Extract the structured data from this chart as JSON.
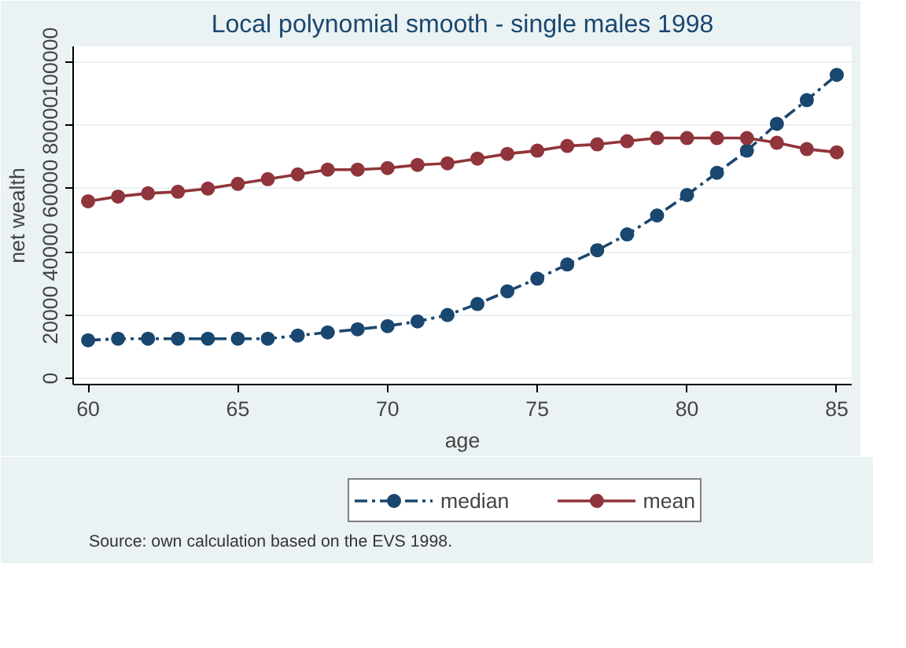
{
  "chart_data": {
    "type": "line",
    "title": "Local polynomial smooth - single males 1998",
    "xlabel": "age",
    "ylabel": "net wealth",
    "x": [
      60,
      61,
      62,
      63,
      64,
      65,
      66,
      67,
      68,
      69,
      70,
      71,
      72,
      73,
      74,
      75,
      76,
      77,
      78,
      79,
      80,
      81,
      82,
      83,
      84,
      85
    ],
    "series": [
      {
        "name": "median",
        "color": "#1a476f",
        "line_style": "dashdot",
        "values": [
          12000,
          12500,
          12500,
          12500,
          12500,
          12500,
          12500,
          13500,
          14500,
          15500,
          16500,
          18000,
          20000,
          23500,
          27500,
          31500,
          36000,
          40500,
          45500,
          51500,
          58000,
          65000,
          72000,
          80500,
          88000,
          96000
        ]
      },
      {
        "name": "mean",
        "color": "#90353b",
        "line_style": "solid",
        "values": [
          56000,
          57500,
          58500,
          59000,
          60000,
          61500,
          63000,
          64500,
          66000,
          66000,
          66500,
          67500,
          68000,
          69500,
          71000,
          72000,
          73500,
          74000,
          75000,
          76000,
          76000,
          76000,
          76000,
          74500,
          72500,
          71500
        ]
      }
    ],
    "marker": "circle",
    "xlim": [
      59.5,
      85.5
    ],
    "ylim": [
      -2000,
      105000
    ],
    "xticks": [
      60,
      65,
      70,
      75,
      80,
      85
    ],
    "yticks": [
      0,
      20000,
      40000,
      60000,
      80000,
      100000
    ],
    "grid": "y",
    "legend": "bottom",
    "annotations": [
      "Source: own calculation based on the EVS 1998."
    ]
  }
}
